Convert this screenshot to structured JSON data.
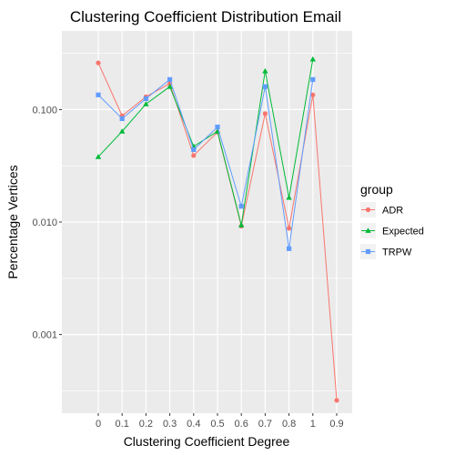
{
  "chart_data": {
    "type": "line",
    "title": "Clustering Coefficient Distribution Email",
    "xlabel": "Clustering Coefficient Degree",
    "ylabel": "Percentage Vertices",
    "y_scale": "log",
    "x_ticks": [
      "0",
      "0.1",
      "0.2",
      "0.3",
      "0.4",
      "0.5",
      "0.6",
      "0.7",
      "0.8",
      "1",
      "0.9"
    ],
    "y_ticks": [
      {
        "value": 0.1,
        "label": "0.100"
      },
      {
        "value": 0.01,
        "label": "0.010"
      },
      {
        "value": 0.001,
        "label": "0.001"
      }
    ],
    "ylim": [
      0.0002,
      0.5
    ],
    "grid": true,
    "legend": {
      "title": "group",
      "position": "right"
    },
    "series": [
      {
        "name": "ADR",
        "color": "#F8766D",
        "marker": "circle",
        "x": [
          "0",
          "0.1",
          "0.2",
          "0.3",
          "0.4",
          "0.5",
          "0.6",
          "0.7",
          "0.8",
          "1",
          "0.9"
        ],
        "values": [
          0.26,
          0.088,
          0.13,
          0.17,
          0.039,
          0.063,
          0.0092,
          0.092,
          0.0088,
          0.135,
          0.00026
        ]
      },
      {
        "name": "Expected",
        "color": "#00BA38",
        "marker": "triangle",
        "x": [
          "0",
          "0.1",
          "0.2",
          "0.3",
          "0.4",
          "0.5",
          "0.6",
          "0.7",
          "0.8",
          "1"
        ],
        "values": [
          0.038,
          0.064,
          0.112,
          0.16,
          0.047,
          0.064,
          0.0094,
          0.22,
          0.0165,
          0.28
        ]
      },
      {
        "name": "TRPW",
        "color": "#619CFF",
        "marker": "square",
        "x": [
          "0",
          "0.1",
          "0.2",
          "0.3",
          "0.4",
          "0.5",
          "0.6",
          "0.7",
          "0.8",
          "1"
        ],
        "values": [
          0.135,
          0.083,
          0.125,
          0.185,
          0.044,
          0.07,
          0.0138,
          0.16,
          0.0058,
          0.185
        ]
      }
    ]
  }
}
